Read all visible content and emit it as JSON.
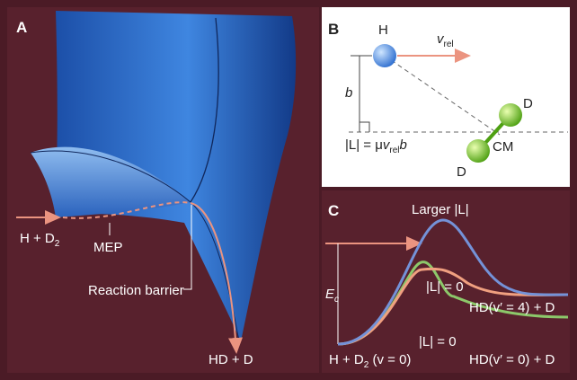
{
  "panel_a": {
    "label": "A",
    "reactant": {
      "text": "H + D",
      "sub": "2"
    },
    "path_label": "MEP",
    "barrier_label": "Reaction barrier",
    "product": "HD + D"
  },
  "panel_b": {
    "label": "B",
    "atom_h": "H",
    "velocity": {
      "text": "v",
      "sub": "rel"
    },
    "impact": "b",
    "momentum": {
      "lhs": "|L| = μ",
      "v": "v",
      "sub": "rel",
      "b": "b"
    },
    "atom_d1": "D",
    "center": "CM",
    "atom_d2": "D"
  },
  "panel_c": {
    "label": "C",
    "larger": "Larger |L|",
    "l_zero_upper": "|L| = 0",
    "product_high": "HD(v′ = 4) + D",
    "energy": {
      "text": "E",
      "sub": "c"
    },
    "l_zero_lower": "|L| = 0",
    "reactant": {
      "text": "H + D",
      "sub": "2",
      "rest": " (v = 0)"
    },
    "product_low": "HD(v′ = 0) + D"
  }
}
